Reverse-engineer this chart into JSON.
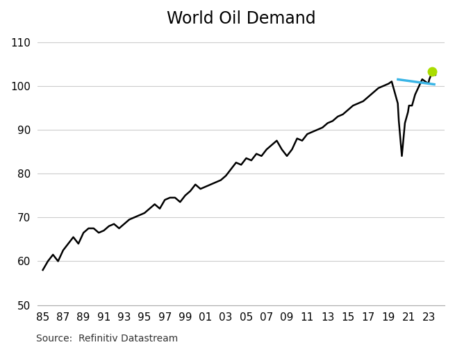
{
  "title": "World Oil Demand",
  "source": "Source:  Refinitiv Datastream",
  "xlim": [
    1984.5,
    2024.5
  ],
  "ylim": [
    50,
    112
  ],
  "yticks": [
    50,
    60,
    70,
    80,
    90,
    100,
    110
  ],
  "xtick_labels": [
    "85",
    "87",
    "89",
    "91",
    "93",
    "95",
    "97",
    "99",
    "01",
    "03",
    "05",
    "07",
    "09",
    "11",
    "13",
    "15",
    "17",
    "19",
    "21",
    "23"
  ],
  "xtick_positions": [
    1985,
    1987,
    1989,
    1991,
    1993,
    1995,
    1997,
    1999,
    2001,
    2003,
    2005,
    2007,
    2009,
    2011,
    2013,
    2015,
    2017,
    2019,
    2021,
    2023
  ],
  "line_color": "#000000",
  "blue_line_color": "#3ab5e6",
  "dot_color": "#aadd00",
  "background_color": "#ffffff",
  "grid_color": "#cccccc",
  "title_fontsize": 17,
  "tick_fontsize": 11,
  "source_fontsize": 10,
  "series": [
    [
      1985.0,
      58.0
    ],
    [
      1985.5,
      60.0
    ],
    [
      1986.0,
      61.5
    ],
    [
      1986.5,
      60.0
    ],
    [
      1987.0,
      62.5
    ],
    [
      1987.5,
      64.0
    ],
    [
      1988.0,
      65.5
    ],
    [
      1988.5,
      64.0
    ],
    [
      1989.0,
      66.5
    ],
    [
      1989.5,
      67.5
    ],
    [
      1990.0,
      67.5
    ],
    [
      1990.5,
      66.5
    ],
    [
      1991.0,
      67.0
    ],
    [
      1991.5,
      68.0
    ],
    [
      1992.0,
      68.5
    ],
    [
      1992.5,
      67.5
    ],
    [
      1993.0,
      68.5
    ],
    [
      1993.5,
      69.5
    ],
    [
      1994.0,
      70.0
    ],
    [
      1994.5,
      70.5
    ],
    [
      1995.0,
      71.0
    ],
    [
      1995.5,
      72.0
    ],
    [
      1996.0,
      73.0
    ],
    [
      1996.5,
      72.0
    ],
    [
      1997.0,
      74.0
    ],
    [
      1997.5,
      74.5
    ],
    [
      1998.0,
      74.5
    ],
    [
      1998.5,
      73.5
    ],
    [
      1999.0,
      75.0
    ],
    [
      1999.5,
      76.0
    ],
    [
      2000.0,
      77.5
    ],
    [
      2000.5,
      76.5
    ],
    [
      2001.0,
      77.0
    ],
    [
      2001.5,
      77.5
    ],
    [
      2002.0,
      78.0
    ],
    [
      2002.5,
      78.5
    ],
    [
      2003.0,
      79.5
    ],
    [
      2003.5,
      81.0
    ],
    [
      2004.0,
      82.5
    ],
    [
      2004.5,
      82.0
    ],
    [
      2005.0,
      83.5
    ],
    [
      2005.5,
      83.0
    ],
    [
      2006.0,
      84.5
    ],
    [
      2006.5,
      84.0
    ],
    [
      2007.0,
      85.5
    ],
    [
      2007.5,
      86.5
    ],
    [
      2008.0,
      87.5
    ],
    [
      2008.5,
      85.5
    ],
    [
      2009.0,
      84.0
    ],
    [
      2009.5,
      85.5
    ],
    [
      2010.0,
      88.0
    ],
    [
      2010.5,
      87.5
    ],
    [
      2011.0,
      89.0
    ],
    [
      2011.5,
      89.5
    ],
    [
      2012.0,
      90.0
    ],
    [
      2012.5,
      90.5
    ],
    [
      2013.0,
      91.5
    ],
    [
      2013.5,
      92.0
    ],
    [
      2014.0,
      93.0
    ],
    [
      2014.5,
      93.5
    ],
    [
      2015.0,
      94.5
    ],
    [
      2015.5,
      95.5
    ],
    [
      2016.0,
      96.0
    ],
    [
      2016.5,
      96.5
    ],
    [
      2017.0,
      97.5
    ],
    [
      2017.5,
      98.5
    ],
    [
      2018.0,
      99.5
    ],
    [
      2018.5,
      100.0
    ],
    [
      2019.0,
      100.5
    ],
    [
      2019.3,
      101.0
    ],
    [
      2019.6,
      98.5
    ],
    [
      2019.9,
      96.0
    ],
    [
      2020.0,
      92.0
    ],
    [
      2020.3,
      84.0
    ],
    [
      2020.6,
      91.5
    ],
    [
      2020.9,
      94.0
    ],
    [
      2021.0,
      95.5
    ],
    [
      2021.3,
      95.5
    ],
    [
      2021.6,
      98.0
    ],
    [
      2021.9,
      99.5
    ],
    [
      2022.0,
      100.0
    ],
    [
      2022.3,
      101.5
    ],
    [
      2022.6,
      101.0
    ],
    [
      2022.9,
      100.5
    ],
    [
      2023.0,
      101.5
    ],
    [
      2023.3,
      103.2
    ],
    [
      2023.6,
      102.5
    ]
  ],
  "blue_line_x": [
    2019.8,
    2023.6
  ],
  "blue_line_y": [
    101.5,
    100.3
  ],
  "dot_x": 2023.3,
  "dot_y": 103.2
}
